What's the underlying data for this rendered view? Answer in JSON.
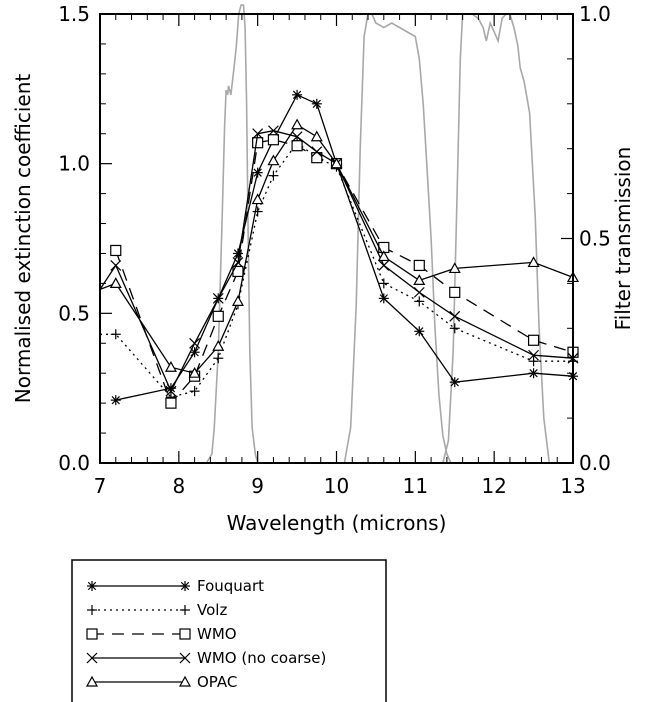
{
  "chart_data": {
    "type": "line",
    "xlabel": "Wavelength (microns)",
    "ylabel": "Normalised extinction coefficient",
    "y2label": "Filter transmission",
    "xlim": [
      7,
      13
    ],
    "ylim": [
      0,
      1.5
    ],
    "y2lim": [
      0,
      1.0
    ],
    "x_ticks": [
      "7",
      "8",
      "9",
      "10",
      "11",
      "12",
      "13"
    ],
    "y_ticks": [
      "0.0",
      "0.5",
      "1.0",
      "1.5"
    ],
    "y2_ticks": [
      "0.0",
      "0.5",
      "1.0"
    ],
    "grid": false,
    "legend_position": "below plot",
    "series": [
      {
        "name": "Fouquart",
        "marker": "asterisk",
        "dash": "solid",
        "x": [
          7.2,
          7.9,
          8.2,
          8.5,
          8.75,
          9.0,
          9.2,
          9.5,
          9.75,
          10.0,
          10.6,
          11.05,
          11.5,
          12.5,
          13.0
        ],
        "y": [
          0.21,
          0.25,
          0.37,
          0.55,
          0.7,
          0.97,
          1.08,
          1.23,
          1.2,
          1.0,
          0.55,
          0.44,
          0.27,
          0.3,
          0.29
        ]
      },
      {
        "name": "Volz",
        "marker": "plus",
        "dash": "dotted",
        "x": [
          7.0,
          7.2,
          7.9,
          8.2,
          8.5,
          8.75,
          9.0,
          9.2,
          9.5,
          9.75,
          10.0,
          10.6,
          11.05,
          11.5,
          12.5,
          13.0
        ],
        "y": [
          0.43,
          0.43,
          0.22,
          0.24,
          0.35,
          0.53,
          0.84,
          0.96,
          1.07,
          1.02,
          0.99,
          0.6,
          0.54,
          0.45,
          0.34,
          0.34
        ]
      },
      {
        "name": "WMO",
        "marker": "square",
        "dash": "dashed",
        "x": [
          7.2,
          7.9,
          8.2,
          8.5,
          8.75,
          9.0,
          9.2,
          9.5,
          9.75,
          10.0,
          10.6,
          11.05,
          11.5,
          12.5,
          13.0
        ],
        "y": [
          0.71,
          0.2,
          0.29,
          0.49,
          0.64,
          1.07,
          1.08,
          1.06,
          1.02,
          1.0,
          0.72,
          0.66,
          0.57,
          0.41,
          0.37
        ]
      },
      {
        "name": "WMO (no coarse)",
        "marker": "x",
        "dash": "solid",
        "x": [
          7.0,
          7.2,
          7.9,
          8.2,
          8.5,
          8.75,
          9.0,
          9.2,
          9.5,
          9.75,
          10.0,
          10.6,
          11.05,
          11.5,
          12.5,
          13.0
        ],
        "y": [
          0.58,
          0.66,
          0.24,
          0.4,
          0.55,
          0.67,
          1.1,
          1.11,
          1.09,
          1.04,
          1.0,
          0.66,
          0.57,
          0.49,
          0.36,
          0.35
        ]
      },
      {
        "name": "OPAC",
        "marker": "triangle",
        "dash": "solid",
        "x": [
          7.0,
          7.2,
          7.9,
          8.2,
          8.5,
          8.75,
          9.0,
          9.2,
          9.5,
          9.75,
          10.0,
          10.6,
          11.05,
          11.5,
          12.5,
          13.0
        ],
        "y": [
          0.58,
          0.6,
          0.32,
          0.3,
          0.39,
          0.54,
          0.88,
          1.01,
          1.13,
          1.09,
          1.0,
          0.69,
          0.61,
          0.65,
          0.67,
          0.62
        ]
      }
    ],
    "filters": [
      {
        "x": [
          8.35,
          8.42,
          8.45,
          8.5,
          8.55,
          8.58,
          8.6,
          8.62,
          8.63,
          8.66,
          8.7,
          8.73,
          8.76,
          8.79,
          8.82,
          8.84,
          8.86,
          8.88,
          8.9,
          8.93,
          8.97,
          9.0,
          9.02
        ],
        "y": [
          0.0,
          0.02,
          0.08,
          0.25,
          0.55,
          0.75,
          0.83,
          0.82,
          0.84,
          0.82,
          0.88,
          0.93,
          1.0,
          1.02,
          1.02,
          0.97,
          0.8,
          0.5,
          0.25,
          0.08,
          0.02,
          0.0,
          0.0
        ]
      },
      {
        "x": [
          10.1,
          10.18,
          10.25,
          10.3,
          10.35,
          10.4,
          10.45,
          10.5,
          10.6,
          10.7,
          10.8,
          10.9,
          11.0,
          11.05,
          11.1,
          11.15,
          11.2,
          11.25,
          11.3,
          11.35,
          11.4,
          11.45
        ],
        "y": [
          0.0,
          0.08,
          0.35,
          0.7,
          0.95,
          1.0,
          1.0,
          0.98,
          0.97,
          0.98,
          0.97,
          0.96,
          0.95,
          0.9,
          0.8,
          0.65,
          0.5,
          0.3,
          0.15,
          0.06,
          0.02,
          0.0
        ]
      },
      {
        "x": [
          11.35,
          11.42,
          11.48,
          11.53,
          11.57,
          11.6,
          11.65,
          11.72,
          11.8,
          11.86,
          11.9,
          11.95,
          12.0,
          12.05,
          12.1,
          12.15,
          12.2,
          12.25,
          12.3,
          12.33,
          12.38,
          12.45,
          12.52,
          12.57,
          12.63,
          12.7
        ],
        "y": [
          0.0,
          0.05,
          0.25,
          0.6,
          0.9,
          1.0,
          1.0,
          1.0,
          0.99,
          0.97,
          0.94,
          0.98,
          0.96,
          0.94,
          0.99,
          1.0,
          1.0,
          0.97,
          0.93,
          0.88,
          0.85,
          0.78,
          0.55,
          0.3,
          0.1,
          0.0
        ]
      }
    ]
  }
}
